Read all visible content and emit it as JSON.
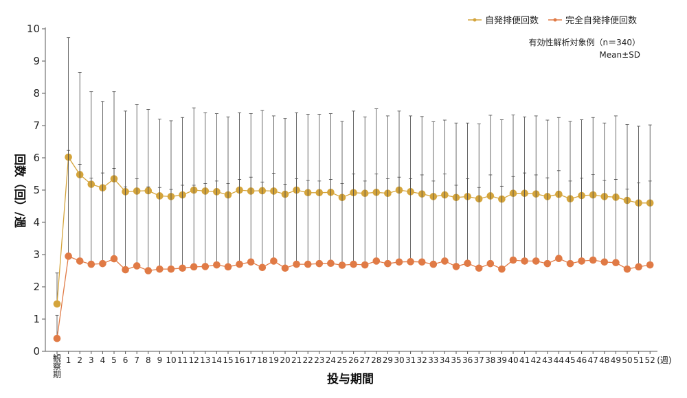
{
  "chart_data": {
    "type": "line",
    "ylabel": "回数（回）/週",
    "xlabel": "投与期間",
    "x_unit": "(週)",
    "ylim": [
      0,
      10
    ],
    "yticks": [
      "0",
      "1",
      "2",
      "3",
      "4",
      "5",
      "6",
      "7",
      "8",
      "9",
      "10"
    ],
    "categories": [
      "観察期",
      "1",
      "2",
      "3",
      "4",
      "5",
      "6",
      "7",
      "8",
      "9",
      "10",
      "11",
      "12",
      "13",
      "14",
      "15",
      "16",
      "17",
      "18",
      "19",
      "20",
      "21",
      "22",
      "23",
      "24",
      "25",
      "26",
      "27",
      "28",
      "29",
      "30",
      "31",
      "32",
      "33",
      "34",
      "35",
      "36",
      "37",
      "38",
      "39",
      "40",
      "41",
      "42",
      "43",
      "44",
      "45",
      "46",
      "47",
      "48",
      "49",
      "50",
      "51",
      "52"
    ],
    "annotation_lines": [
      "有効性解析対象例（n＝340）",
      "Mean±SD"
    ],
    "legend_position": "top-right",
    "series": [
      {
        "name": "自発排便回数",
        "color": "#d4a43b",
        "error_bars": "SD (upper)",
        "values": [
          1.47,
          6.02,
          5.48,
          5.18,
          5.07,
          5.35,
          4.95,
          4.97,
          4.98,
          4.82,
          4.8,
          4.85,
          5.0,
          4.97,
          4.95,
          4.85,
          5.0,
          4.97,
          4.98,
          4.97,
          4.87,
          5.0,
          4.92,
          4.92,
          4.93,
          4.77,
          4.92,
          4.9,
          4.93,
          4.9,
          5.0,
          4.95,
          4.88,
          4.8,
          4.85,
          4.77,
          4.8,
          4.73,
          4.82,
          4.72,
          4.9,
          4.9,
          4.88,
          4.8,
          4.87,
          4.73,
          4.83,
          4.85,
          4.8,
          4.78,
          4.68,
          4.6,
          4.6
        ],
        "upper": [
          2.43,
          9.73,
          8.65,
          8.05,
          7.75,
          8.05,
          7.45,
          7.65,
          7.5,
          7.2,
          7.15,
          7.25,
          7.55,
          7.4,
          7.37,
          7.27,
          7.4,
          7.37,
          7.47,
          7.3,
          7.22,
          7.4,
          7.35,
          7.35,
          7.37,
          7.13,
          7.45,
          7.27,
          7.52,
          7.3,
          7.45,
          7.3,
          7.28,
          7.12,
          7.17,
          7.08,
          7.08,
          7.05,
          7.32,
          7.18,
          7.33,
          7.27,
          7.3,
          7.17,
          7.25,
          7.13,
          7.18,
          7.25,
          7.08,
          7.3,
          7.03,
          6.98,
          7.02
        ]
      },
      {
        "name": "完全自発排便回数",
        "color": "#e07a45",
        "error_bars": "SD (upper)",
        "values": [
          0.4,
          2.95,
          2.8,
          2.7,
          2.72,
          2.87,
          2.53,
          2.65,
          2.5,
          2.55,
          2.55,
          2.58,
          2.62,
          2.63,
          2.68,
          2.62,
          2.7,
          2.77,
          2.6,
          2.8,
          2.58,
          2.7,
          2.7,
          2.72,
          2.73,
          2.67,
          2.7,
          2.68,
          2.8,
          2.72,
          2.77,
          2.78,
          2.77,
          2.7,
          2.8,
          2.63,
          2.73,
          2.58,
          2.72,
          2.55,
          2.83,
          2.8,
          2.8,
          2.72,
          2.88,
          2.72,
          2.8,
          2.83,
          2.77,
          2.75,
          2.55,
          2.62,
          2.68
        ],
        "upper": [
          1.12,
          6.23,
          5.8,
          5.37,
          5.53,
          5.67,
          5.1,
          5.35,
          5.1,
          5.08,
          5.02,
          5.15,
          5.15,
          5.2,
          5.28,
          5.2,
          5.33,
          5.4,
          5.25,
          5.52,
          5.18,
          5.35,
          5.3,
          5.28,
          5.33,
          5.2,
          5.5,
          5.28,
          5.5,
          5.35,
          5.4,
          5.35,
          5.47,
          5.28,
          5.5,
          5.15,
          5.35,
          5.08,
          5.47,
          5.12,
          5.42,
          5.53,
          5.47,
          5.38,
          5.6,
          5.28,
          5.37,
          5.48,
          5.3,
          5.33,
          5.03,
          5.22,
          5.28
        ]
      }
    ]
  }
}
